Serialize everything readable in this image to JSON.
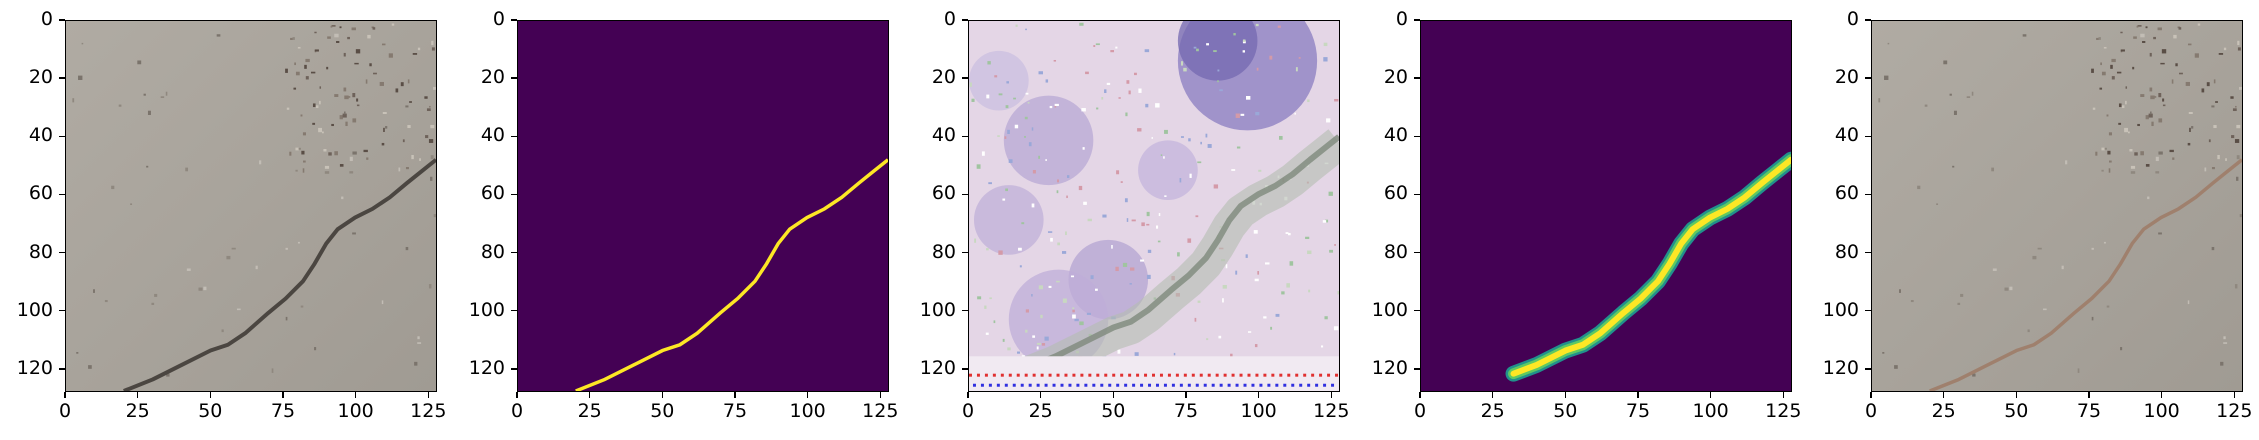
{
  "figure": {
    "panels": [
      {
        "id": "p1",
        "kind": "input-photo",
        "description_icon": "concrete-crack-photo"
      },
      {
        "id": "p2",
        "kind": "ground-truth-mask",
        "description_icon": "binary-crack-mask"
      },
      {
        "id": "p3",
        "kind": "feature-map",
        "description_icon": "noisy-reconstruction"
      },
      {
        "id": "p4",
        "kind": "predicted-mask",
        "description_icon": "smooth-crack-mask"
      },
      {
        "id": "p5",
        "kind": "overlay-photo",
        "description_icon": "crack-overlay-photo"
      }
    ],
    "x_ticks": [
      "0",
      "25",
      "50",
      "75",
      "100",
      "125"
    ],
    "y_ticks": [
      "0",
      "20",
      "40",
      "60",
      "80",
      "100",
      "120"
    ],
    "x_tick_values": [
      0,
      25,
      50,
      75,
      100,
      125
    ],
    "y_tick_values": [
      0,
      20,
      40,
      60,
      80,
      100,
      120
    ],
    "image_extent": [
      0,
      128
    ],
    "colors": {
      "mask_background": "#440154",
      "mask_foreground": "#fde725",
      "mask_mid": "#21918c",
      "concrete": "#a9a49c",
      "crack": "#4b4641"
    }
  }
}
